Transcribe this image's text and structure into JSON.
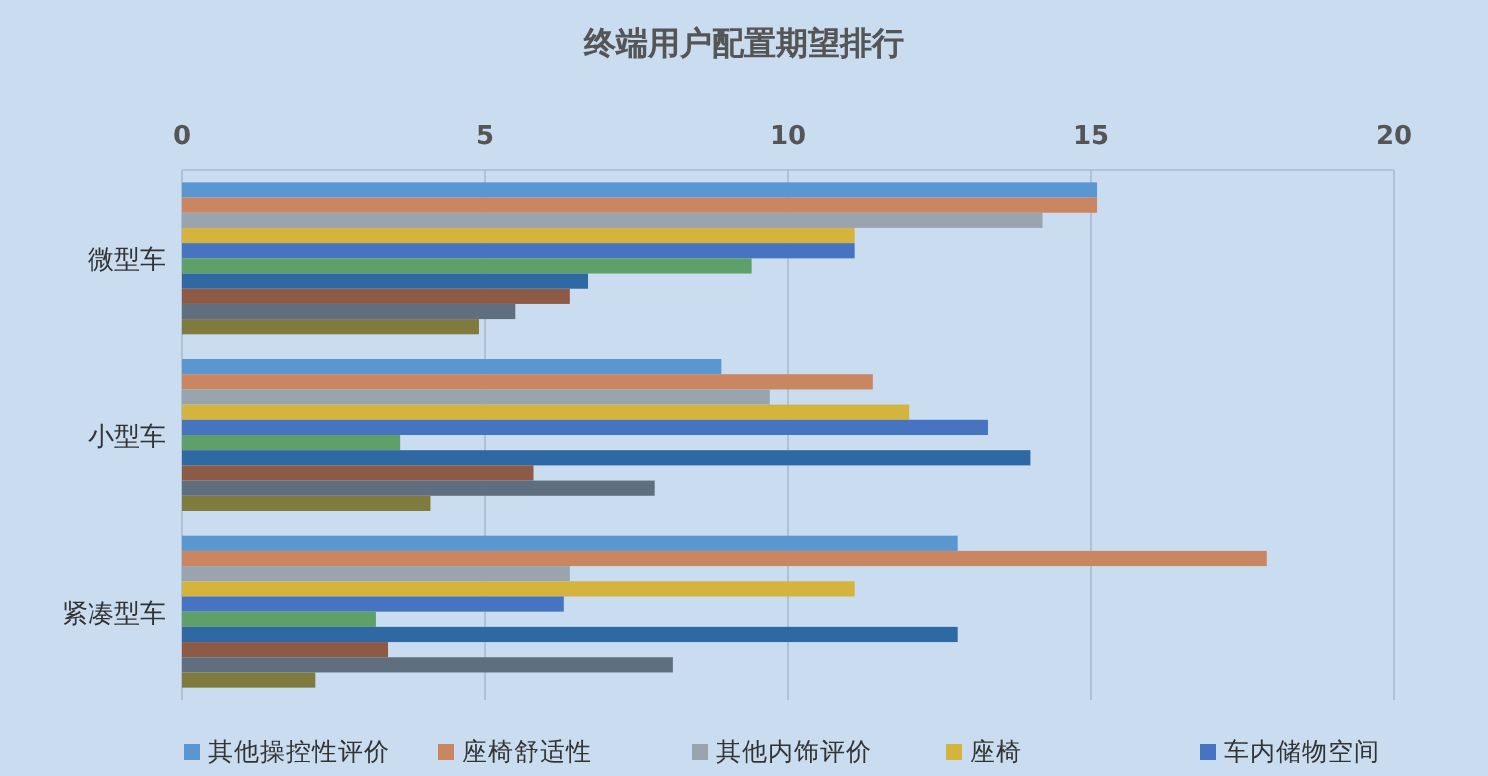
{
  "chart_data": {
    "type": "bar",
    "orientation": "horizontal",
    "title": "终端用户配置期望排行",
    "categories": [
      "微型车",
      "小型车",
      "紧凑型车"
    ],
    "xlim": [
      0,
      20
    ],
    "xticks": [
      0,
      5,
      10,
      15,
      20
    ],
    "grid": "x",
    "legend": "bottom",
    "series": [
      {
        "name": "其他操控性评价",
        "color": "#5a96d0",
        "values": [
          15.1,
          8.9,
          12.8
        ]
      },
      {
        "name": "座椅舒适性",
        "color": "#c98660",
        "values": [
          15.1,
          11.4,
          17.9
        ]
      },
      {
        "name": "其他内饰评价",
        "color": "#9aa4ae",
        "values": [
          14.2,
          9.7,
          6.4
        ]
      },
      {
        "name": "座椅",
        "color": "#d4b43c",
        "values": [
          11.1,
          12.0,
          11.1
        ]
      },
      {
        "name": "车内储物空间",
        "color": "#4774c0",
        "values": [
          11.1,
          13.3,
          6.3
        ]
      },
      {
        "color": "#5fa06a",
        "values": [
          9.4,
          3.6,
          3.2
        ]
      },
      {
        "color": "#2e69a3",
        "values": [
          6.7,
          14.0,
          12.8
        ]
      },
      {
        "color": "#8d5a45",
        "values": [
          6.4,
          5.8,
          3.4
        ]
      },
      {
        "color": "#5f6f80",
        "values": [
          5.5,
          7.8,
          8.1
        ]
      },
      {
        "color": "#7f7a3e",
        "values": [
          4.9,
          4.1,
          2.2
        ]
      }
    ]
  }
}
